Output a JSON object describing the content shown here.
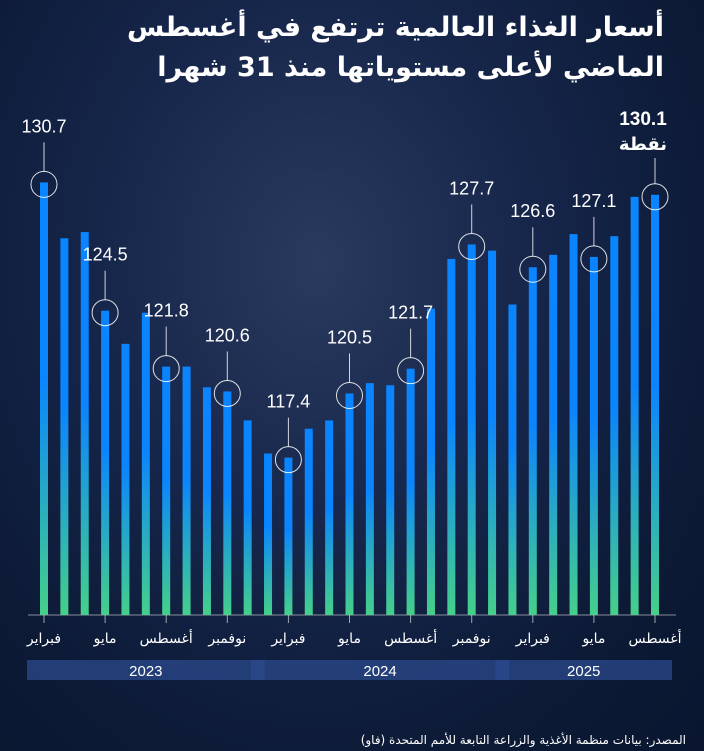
{
  "title_line1": "أسعار الغذاء العالمية ترتفع في أغسطس",
  "title_line2": "الماضي لأعلى مستوياتها منذ 31 شهرا",
  "source": "المصدر: بيانات منظمة الأغذية والزراعة التابعة للأمم المتحدة (فاو)",
  "chart_data": {
    "type": "bar",
    "title": "أسعار الغذاء العالمية ترتفع في أغسطس الماضي لأعلى مستوياتها منذ 31 شهرا",
    "categories": [
      "2023-02",
      "2023-03",
      "2023-04",
      "2023-05",
      "2023-06",
      "2023-07",
      "2023-08",
      "2023-09",
      "2023-10",
      "2023-11",
      "2023-12",
      "2024-01",
      "2024-02",
      "2024-03",
      "2024-04",
      "2024-05",
      "2024-06",
      "2024-07",
      "2024-08",
      "2024-09",
      "2024-10",
      "2024-11",
      "2024-12",
      "2025-01",
      "2025-02",
      "2025-03",
      "2025-04",
      "2025-05",
      "2025-06",
      "2025-07",
      "2025-08"
    ],
    "values": [
      130.7,
      128.0,
      128.3,
      124.5,
      122.9,
      124.4,
      121.8,
      121.8,
      120.8,
      120.6,
      119.2,
      117.6,
      117.4,
      118.8,
      119.2,
      120.5,
      121.0,
      120.9,
      121.7,
      124.6,
      127.0,
      127.7,
      127.4,
      124.8,
      126.6,
      127.2,
      128.2,
      127.1,
      128.1,
      130.0,
      130.1
    ],
    "data_labels": [
      {
        "index": 0,
        "text": "130.7"
      },
      {
        "index": 3,
        "text": "124.5"
      },
      {
        "index": 6,
        "text": "121.8"
      },
      {
        "index": 9,
        "text": "120.6"
      },
      {
        "index": 12,
        "text": "117.4"
      },
      {
        "index": 15,
        "text": "120.5"
      },
      {
        "index": 18,
        "text": "121.7"
      },
      {
        "index": 21,
        "text": "127.7"
      },
      {
        "index": 24,
        "text": "126.6"
      },
      {
        "index": 27,
        "text": "127.1"
      },
      {
        "index": 30,
        "text": "130.1",
        "unit": "نقطة"
      }
    ],
    "x_tick_labels": [
      {
        "index": 0,
        "text": "فبراير"
      },
      {
        "index": 3,
        "text": "مايو"
      },
      {
        "index": 6,
        "text": "أغسطس"
      },
      {
        "index": 9,
        "text": "نوفمبر"
      },
      {
        "index": 12,
        "text": "فبراير"
      },
      {
        "index": 15,
        "text": "مايو"
      },
      {
        "index": 18,
        "text": "أغسطس"
      },
      {
        "index": 21,
        "text": "نوفمبر"
      },
      {
        "index": 24,
        "text": "فبراير"
      },
      {
        "index": 27,
        "text": "مايو"
      },
      {
        "index": 30,
        "text": "أغسطس"
      }
    ],
    "years": [
      {
        "label": "2023",
        "from": 0,
        "to": 10
      },
      {
        "label": "2024",
        "from": 11,
        "to": 22
      },
      {
        "label": "2025",
        "from": 23,
        "to": 30
      }
    ],
    "ylim": [
      109.8,
      132
    ],
    "grid": false,
    "colors": {
      "bar_top": "#0a84ff",
      "bar_bottom": "#45d08a",
      "year_band": "#2b4a8c"
    }
  }
}
